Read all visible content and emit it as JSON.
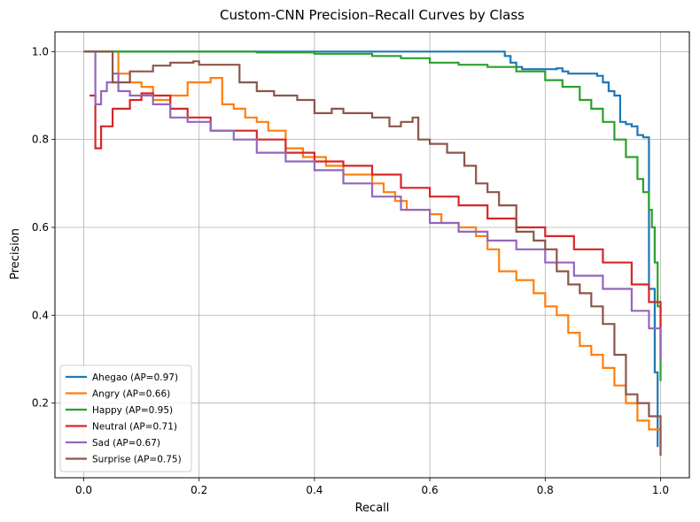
{
  "chart_data": {
    "type": "line",
    "title": "Custom-CNN Precision–Recall Curves by Class",
    "xlabel": "Recall",
    "ylabel": "Precision",
    "xlim": [
      -0.05,
      1.05
    ],
    "ylim": [
      0.03,
      1.045
    ],
    "xticks": [
      0.0,
      0.2,
      0.4,
      0.6,
      0.8,
      1.0
    ],
    "xtick_labels": [
      "0.0",
      "0.2",
      "0.4",
      "0.6",
      "0.8",
      "1.0"
    ],
    "yticks": [
      0.2,
      0.4,
      0.6,
      0.8,
      1.0
    ],
    "ytick_labels": [
      "0.2",
      "0.4",
      "0.6",
      "0.8",
      "1.0"
    ],
    "grid": true,
    "legend_position": "lower-left",
    "series": [
      {
        "name": "Ahegao (AP=0.97)",
        "color": "#1f77b4",
        "points": [
          [
            0.0,
            1.0
          ],
          [
            0.3,
            1.0
          ],
          [
            0.5,
            1.0
          ],
          [
            0.65,
            1.0
          ],
          [
            0.72,
            1.0
          ],
          [
            0.73,
            0.99
          ],
          [
            0.74,
            0.975
          ],
          [
            0.75,
            0.965
          ],
          [
            0.76,
            0.96
          ],
          [
            0.82,
            0.962
          ],
          [
            0.83,
            0.955
          ],
          [
            0.84,
            0.95
          ],
          [
            0.88,
            0.95
          ],
          [
            0.89,
            0.945
          ],
          [
            0.9,
            0.93
          ],
          [
            0.91,
            0.91
          ],
          [
            0.92,
            0.9
          ],
          [
            0.93,
            0.84
          ],
          [
            0.94,
            0.835
          ],
          [
            0.95,
            0.83
          ],
          [
            0.96,
            0.81
          ],
          [
            0.97,
            0.805
          ],
          [
            0.98,
            0.795
          ],
          [
            0.98,
            0.46
          ],
          [
            0.99,
            0.27
          ],
          [
            0.995,
            0.1
          ]
        ]
      },
      {
        "name": "Angry (AP=0.66)",
        "color": "#ff7f0e",
        "points": [
          [
            0.0,
            1.0
          ],
          [
            0.05,
            1.0
          ],
          [
            0.06,
            0.95
          ],
          [
            0.08,
            0.93
          ],
          [
            0.1,
            0.92
          ],
          [
            0.12,
            0.89
          ],
          [
            0.15,
            0.9
          ],
          [
            0.18,
            0.93
          ],
          [
            0.22,
            0.94
          ],
          [
            0.24,
            0.88
          ],
          [
            0.26,
            0.87
          ],
          [
            0.28,
            0.85
          ],
          [
            0.3,
            0.84
          ],
          [
            0.32,
            0.82
          ],
          [
            0.35,
            0.78
          ],
          [
            0.38,
            0.76
          ],
          [
            0.42,
            0.74
          ],
          [
            0.45,
            0.72
          ],
          [
            0.5,
            0.7
          ],
          [
            0.52,
            0.68
          ],
          [
            0.54,
            0.66
          ],
          [
            0.56,
            0.64
          ],
          [
            0.6,
            0.63
          ],
          [
            0.62,
            0.61
          ],
          [
            0.65,
            0.6
          ],
          [
            0.68,
            0.58
          ],
          [
            0.7,
            0.55
          ],
          [
            0.72,
            0.5
          ],
          [
            0.75,
            0.48
          ],
          [
            0.78,
            0.45
          ],
          [
            0.8,
            0.42
          ],
          [
            0.82,
            0.4
          ],
          [
            0.84,
            0.36
          ],
          [
            0.86,
            0.33
          ],
          [
            0.88,
            0.31
          ],
          [
            0.9,
            0.28
          ],
          [
            0.92,
            0.24
          ],
          [
            0.94,
            0.2
          ],
          [
            0.96,
            0.16
          ],
          [
            0.98,
            0.14
          ],
          [
            1.0,
            0.1
          ]
        ]
      },
      {
        "name": "Happy (AP=0.95)",
        "color": "#2ca02c",
        "points": [
          [
            0.0,
            1.0
          ],
          [
            0.1,
            1.0
          ],
          [
            0.2,
            1.0
          ],
          [
            0.3,
            0.998
          ],
          [
            0.4,
            0.995
          ],
          [
            0.5,
            0.99
          ],
          [
            0.55,
            0.985
          ],
          [
            0.6,
            0.975
          ],
          [
            0.65,
            0.97
          ],
          [
            0.7,
            0.965
          ],
          [
            0.75,
            0.955
          ],
          [
            0.8,
            0.935
          ],
          [
            0.83,
            0.92
          ],
          [
            0.86,
            0.89
          ],
          [
            0.88,
            0.87
          ],
          [
            0.9,
            0.84
          ],
          [
            0.92,
            0.8
          ],
          [
            0.94,
            0.76
          ],
          [
            0.96,
            0.71
          ],
          [
            0.97,
            0.68
          ],
          [
            0.98,
            0.64
          ],
          [
            0.985,
            0.6
          ],
          [
            0.99,
            0.52
          ],
          [
            0.995,
            0.42
          ],
          [
            1.0,
            0.25
          ]
        ]
      },
      {
        "name": "Neutral (AP=0.71)",
        "color": "#d62728",
        "points": [
          [
            0.01,
            0.9
          ],
          [
            0.02,
            0.78
          ],
          [
            0.03,
            0.83
          ],
          [
            0.05,
            0.87
          ],
          [
            0.08,
            0.89
          ],
          [
            0.1,
            0.905
          ],
          [
            0.12,
            0.9
          ],
          [
            0.15,
            0.87
          ],
          [
            0.18,
            0.85
          ],
          [
            0.22,
            0.82
          ],
          [
            0.26,
            0.82
          ],
          [
            0.3,
            0.8
          ],
          [
            0.35,
            0.77
          ],
          [
            0.4,
            0.75
          ],
          [
            0.45,
            0.74
          ],
          [
            0.5,
            0.72
          ],
          [
            0.55,
            0.69
          ],
          [
            0.6,
            0.67
          ],
          [
            0.65,
            0.65
          ],
          [
            0.7,
            0.62
          ],
          [
            0.75,
            0.6
          ],
          [
            0.8,
            0.58
          ],
          [
            0.85,
            0.55
          ],
          [
            0.9,
            0.52
          ],
          [
            0.95,
            0.47
          ],
          [
            0.98,
            0.43
          ],
          [
            1.0,
            0.3
          ]
        ]
      },
      {
        "name": "Sad (AP=0.67)",
        "color": "#9467bd",
        "points": [
          [
            0.0,
            1.0
          ],
          [
            0.01,
            1.0
          ],
          [
            0.02,
            0.88
          ],
          [
            0.03,
            0.91
          ],
          [
            0.04,
            0.93
          ],
          [
            0.05,
            0.95
          ],
          [
            0.06,
            0.91
          ],
          [
            0.08,
            0.9
          ],
          [
            0.1,
            0.9
          ],
          [
            0.12,
            0.88
          ],
          [
            0.15,
            0.85
          ],
          [
            0.18,
            0.84
          ],
          [
            0.22,
            0.82
          ],
          [
            0.26,
            0.8
          ],
          [
            0.3,
            0.77
          ],
          [
            0.35,
            0.75
          ],
          [
            0.4,
            0.73
          ],
          [
            0.45,
            0.7
          ],
          [
            0.5,
            0.67
          ],
          [
            0.55,
            0.64
          ],
          [
            0.6,
            0.61
          ],
          [
            0.65,
            0.59
          ],
          [
            0.7,
            0.57
          ],
          [
            0.75,
            0.55
          ],
          [
            0.8,
            0.52
          ],
          [
            0.85,
            0.49
          ],
          [
            0.9,
            0.46
          ],
          [
            0.95,
            0.41
          ],
          [
            0.98,
            0.37
          ],
          [
            1.0,
            0.3
          ]
        ]
      },
      {
        "name": "Surprise (AP=0.75)",
        "color": "#8c564b",
        "points": [
          [
            0.0,
            1.0
          ],
          [
            0.05,
            1.0
          ],
          [
            0.05,
            0.93
          ],
          [
            0.08,
            0.955
          ],
          [
            0.12,
            0.968
          ],
          [
            0.15,
            0.975
          ],
          [
            0.19,
            0.978
          ],
          [
            0.2,
            0.97
          ],
          [
            0.25,
            0.97
          ],
          [
            0.27,
            0.93
          ],
          [
            0.3,
            0.91
          ],
          [
            0.33,
            0.9
          ],
          [
            0.37,
            0.89
          ],
          [
            0.4,
            0.86
          ],
          [
            0.43,
            0.87
          ],
          [
            0.45,
            0.86
          ],
          [
            0.5,
            0.85
          ],
          [
            0.53,
            0.83
          ],
          [
            0.55,
            0.84
          ],
          [
            0.57,
            0.85
          ],
          [
            0.58,
            0.8
          ],
          [
            0.6,
            0.79
          ],
          [
            0.63,
            0.77
          ],
          [
            0.66,
            0.74
          ],
          [
            0.68,
            0.7
          ],
          [
            0.7,
            0.68
          ],
          [
            0.72,
            0.65
          ],
          [
            0.75,
            0.59
          ],
          [
            0.78,
            0.57
          ],
          [
            0.8,
            0.55
          ],
          [
            0.82,
            0.5
          ],
          [
            0.84,
            0.47
          ],
          [
            0.86,
            0.45
          ],
          [
            0.88,
            0.42
          ],
          [
            0.9,
            0.38
          ],
          [
            0.92,
            0.31
          ],
          [
            0.94,
            0.22
          ],
          [
            0.96,
            0.2
          ],
          [
            0.98,
            0.17
          ],
          [
            1.0,
            0.08
          ]
        ]
      }
    ]
  }
}
